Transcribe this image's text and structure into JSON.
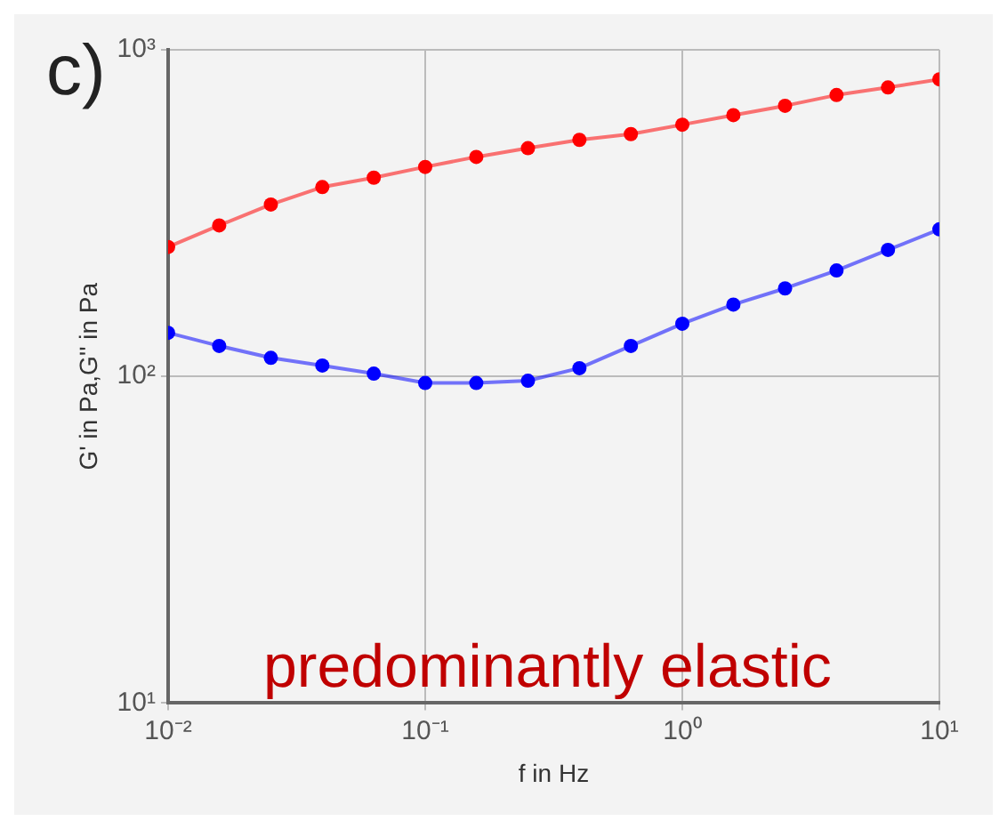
{
  "chart_data": {
    "type": "line",
    "annotations": [
      "c)",
      "predominantly elastic"
    ],
    "xlabel": "f in Hz",
    "ylabel": "G' in Pa,G'' in Pa",
    "x": [
      0.01,
      0.0158,
      0.0251,
      0.0398,
      0.0631,
      0.1,
      0.158,
      0.251,
      0.398,
      0.631,
      1,
      1.58,
      2.51,
      3.98,
      6.31,
      10
    ],
    "series": [
      {
        "color": "#ff0000",
        "values": [
          249,
          290,
          336,
          380,
          406,
          438,
          470,
          500,
          530,
          552,
          590,
          631,
          674,
          727,
          767,
          812
        ]
      },
      {
        "color": "#0000ff",
        "values": [
          136,
          124,
          114,
          108,
          102,
          95.5,
          95.5,
          97,
          106,
          124,
          145,
          166,
          186,
          211,
          244,
          282
        ]
      }
    ],
    "log": "xy",
    "xlim": [
      0.01,
      10
    ],
    "ylim": [
      10,
      1000
    ],
    "xticks": [
      {
        "value": 0.01,
        "label": "10⁻²"
      },
      {
        "value": 0.1,
        "label": "10⁻¹"
      },
      {
        "value": 1,
        "label": "10⁰"
      },
      {
        "value": 10,
        "label": "10¹"
      }
    ],
    "yticks": [
      {
        "value": 10,
        "label": "10¹"
      },
      {
        "value": 100,
        "label": "10²"
      },
      {
        "value": 1000,
        "label": "10³"
      }
    ],
    "grid": true,
    "marker": "circle",
    "line_style": "solid"
  }
}
